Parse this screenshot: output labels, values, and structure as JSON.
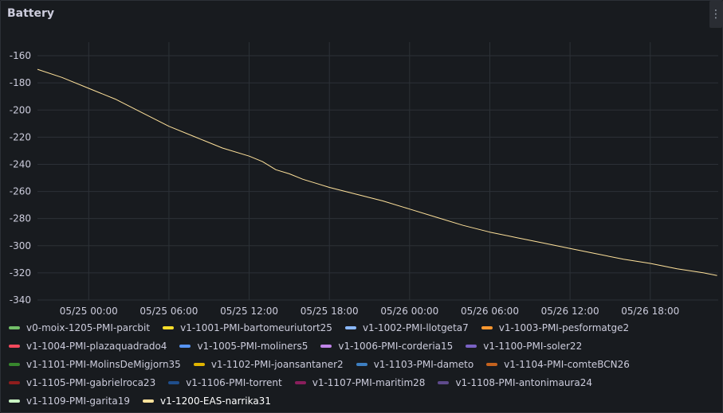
{
  "panel": {
    "title": "Battery",
    "menu_icon": "⋮"
  },
  "chart_data": {
    "type": "line",
    "title": "Battery",
    "xlabel": "",
    "ylabel": "",
    "ylim": [
      -340,
      -150
    ],
    "yticks": [
      -160,
      -180,
      -200,
      -220,
      -240,
      -260,
      -280,
      -300,
      -320,
      -340
    ],
    "xlim": [
      "05/24 20:10",
      "05/26 23:05"
    ],
    "xticks": [
      "05/25 00:00",
      "05/25 06:00",
      "05/25 12:00",
      "05/25 18:00",
      "05/26 00:00",
      "05/26 06:00",
      "05/26 12:00",
      "05/26 18:00"
    ],
    "grid": true,
    "legend_position": "bottom",
    "series": [
      {
        "name": "v1-1200-EAS-narrika31",
        "color": "#ffe29b",
        "points": [
          [
            "05/24 20:10",
            -170
          ],
          [
            "05/24 22:00",
            -176
          ],
          [
            "05/25 00:00",
            -184
          ],
          [
            "05/25 02:00",
            -192
          ],
          [
            "05/25 04:00",
            -202
          ],
          [
            "05/25 06:00",
            -212
          ],
          [
            "05/25 08:00",
            -220
          ],
          [
            "05/25 10:00",
            -228
          ],
          [
            "05/25 12:00",
            -234
          ],
          [
            "05/25 13:00",
            -238
          ],
          [
            "05/25 14:00",
            -244
          ],
          [
            "05/25 15:00",
            -247
          ],
          [
            "05/25 16:00",
            -251
          ],
          [
            "05/25 17:00",
            -254
          ],
          [
            "05/25 18:00",
            -257
          ],
          [
            "05/25 20:00",
            -262
          ],
          [
            "05/25 22:00",
            -267
          ],
          [
            "05/26 00:00",
            -273
          ],
          [
            "05/26 02:00",
            -279
          ],
          [
            "05/26 04:00",
            -285
          ],
          [
            "05/26 06:00",
            -290
          ],
          [
            "05/26 08:00",
            -294
          ],
          [
            "05/26 10:00",
            -298
          ],
          [
            "05/26 12:00",
            -302
          ],
          [
            "05/26 14:00",
            -306
          ],
          [
            "05/26 16:00",
            -310
          ],
          [
            "05/26 18:00",
            -313
          ],
          [
            "05/26 20:00",
            -317
          ],
          [
            "05/26 22:00",
            -320
          ],
          [
            "05/26 23:00",
            -322
          ]
        ]
      }
    ]
  },
  "legend": [
    {
      "label": "v0-moix-1205-PMI-parcbit",
      "color": "#73bf69"
    },
    {
      "label": "v1-1001-PMI-bartomeuriutort25",
      "color": "#fade2a"
    },
    {
      "label": "v1-1002-PMI-llotgeta7",
      "color": "#8ab8ff"
    },
    {
      "label": "v1-1003-PMI-pesformatge2",
      "color": "#ff9830"
    },
    {
      "label": "v1-1004-PMI-plazaquadrado4",
      "color": "#f2495c"
    },
    {
      "label": "v1-1005-PMI-moliners5",
      "color": "#5794f2"
    },
    {
      "label": "v1-1006-PMI-corderia15",
      "color": "#c084e8"
    },
    {
      "label": "v1-1100-PMI-soler22",
      "color": "#7a62c4"
    },
    {
      "label": "v1-1101-PMI-MolinsDeMigjorn35",
      "color": "#37872d"
    },
    {
      "label": "v1-1102-PMI-joansantaner2",
      "color": "#e0b400"
    },
    {
      "label": "v1-1103-PMI-dameto",
      "color": "#3d7fc2"
    },
    {
      "label": "v1-1104-PMI-comteBCN26",
      "color": "#c4621e"
    },
    {
      "label": "v1-1105-PMI-gabrielroca23",
      "color": "#8f1d1d"
    },
    {
      "label": "v1-1106-PMI-torrent",
      "color": "#1f4e8c"
    },
    {
      "label": "v1-1107-PMI-maritim28",
      "color": "#8a1e5c"
    },
    {
      "label": "v1-1108-PMI-antonimaura24",
      "color": "#5e4a8c"
    },
    {
      "label": "v1-1109-PMI-garita19",
      "color": "#c8f2c2"
    },
    {
      "label": "v1-1200-EAS-narrika31",
      "color": "#ffe29b"
    }
  ]
}
